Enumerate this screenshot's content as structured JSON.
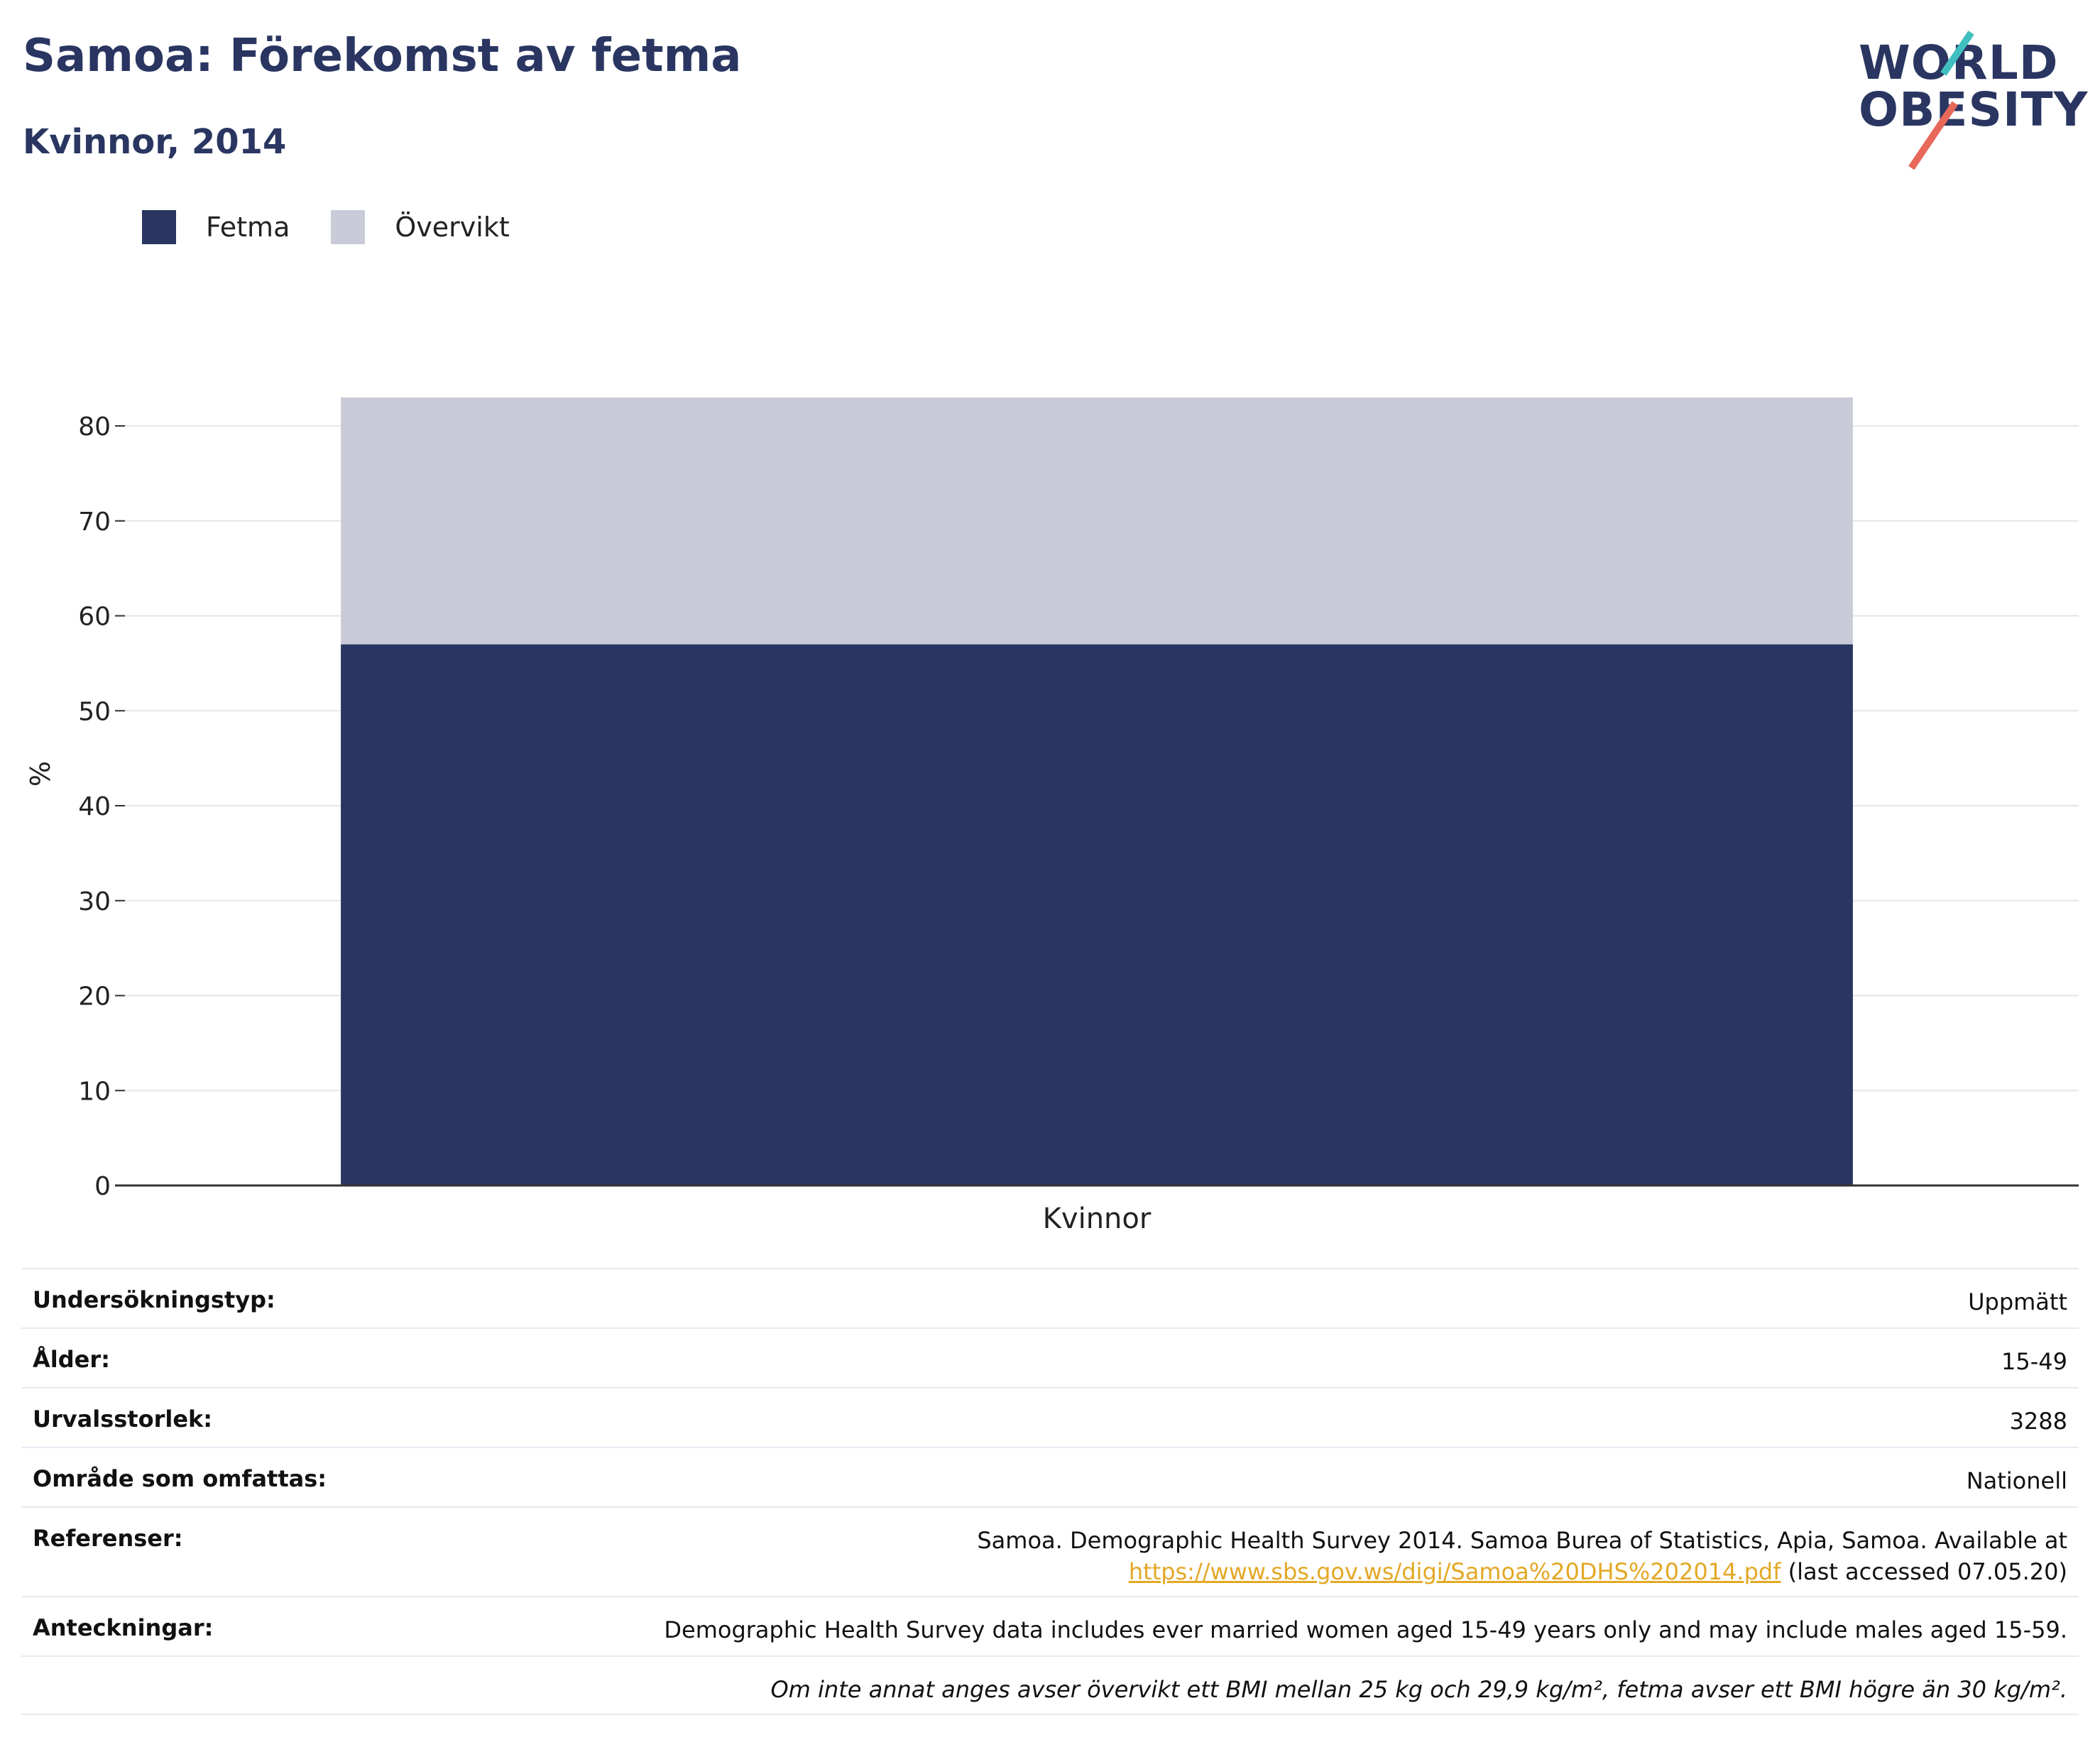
{
  "header": {
    "title": "Samoa: Förekomst av fetma",
    "subtitle": "Kvinnor, 2014"
  },
  "logo": {
    "line1": "WORLD",
    "line2": "OBESITY",
    "colors": {
      "text": "#2a3661",
      "slash_lower": "#e8685a",
      "slash_upper": "#3fbfbf"
    }
  },
  "legend": [
    {
      "label": "Fetma",
      "color": "#2a3661"
    },
    {
      "label": "Övervikt",
      "color": "#c9ccd8"
    }
  ],
  "chart_data": {
    "type": "bar",
    "stacked": true,
    "categories": [
      "Kvinnor"
    ],
    "series": [
      {
        "name": "Fetma",
        "color": "#2a3661",
        "values": [
          57
        ]
      },
      {
        "name": "Övervikt",
        "color": "#c9ccd8",
        "values": [
          26
        ]
      }
    ],
    "ylabel": "%",
    "xlabel": "",
    "ylim": [
      0,
      83
    ],
    "yticks": [
      0,
      10,
      20,
      30,
      40,
      50,
      60,
      70,
      80
    ],
    "grid": true,
    "legend_position": "top-left"
  },
  "info": {
    "rows": [
      {
        "label": "Undersökningstyp:",
        "value": "Uppmätt"
      },
      {
        "label": "Ålder:",
        "value": "15-49"
      },
      {
        "label": "Urvalsstorlek:",
        "value": "3288"
      },
      {
        "label": "Område som omfattas:",
        "value": "Nationell"
      }
    ],
    "references": {
      "label": "Referenser:",
      "text": "Samoa. Demographic Health Survey 2014. Samoa Burea of Statistics, Apia, Samoa. Available at",
      "link": "https://www.sbs.gov.ws/digi/Samoa%20DHS%202014.pdf",
      "suffix": " (last accessed 07.05.20)"
    },
    "notes": {
      "label": "Anteckningar:",
      "value": "Demographic Health Survey data includes ever married women aged 15-49 years only and may include males aged 15-59."
    },
    "footnote": "Om inte annat anges avser övervikt ett BMI mellan 25 kg och 29,9 kg/m², fetma avser ett BMI högre än 30 kg/m²."
  }
}
